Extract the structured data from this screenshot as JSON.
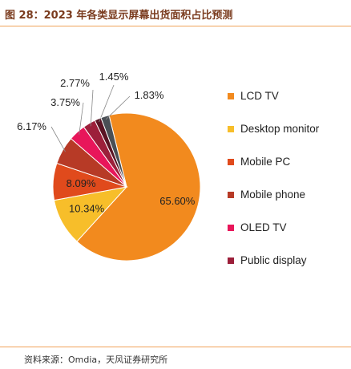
{
  "figure": {
    "title": "图 28：2023 年各类显示屏幕出货面积占比预测",
    "source": "资料来源：Omdia，天风证券研究所"
  },
  "chart_data": {
    "type": "pie",
    "title": "",
    "legend_position": "right",
    "slices": [
      {
        "label": "LCD TV",
        "value": 65.6,
        "value_label": "65.60%",
        "color": "#f28a1e"
      },
      {
        "label": "Desktop monitor",
        "value": 10.34,
        "value_label": "10.34%",
        "color": "#f7be2a"
      },
      {
        "label": "Mobile PC",
        "value": 8.09,
        "value_label": "8.09%",
        "color": "#e04a1c"
      },
      {
        "label": "Mobile phone",
        "value": 6.17,
        "value_label": "6.17%",
        "color": "#b73a26"
      },
      {
        "label": "OLED TV",
        "value": 3.75,
        "value_label": "3.75%",
        "color": "#e8165a"
      },
      {
        "label": "Public display",
        "value": 2.77,
        "value_label": "2.77%",
        "color": "#9c1f3a"
      },
      {
        "label": "",
        "value": 1.45,
        "value_label": "1.45%",
        "color": "#5a1424"
      },
      {
        "label": "",
        "value": 1.83,
        "value_label": "1.83%",
        "color": "#4a4f55"
      }
    ]
  }
}
